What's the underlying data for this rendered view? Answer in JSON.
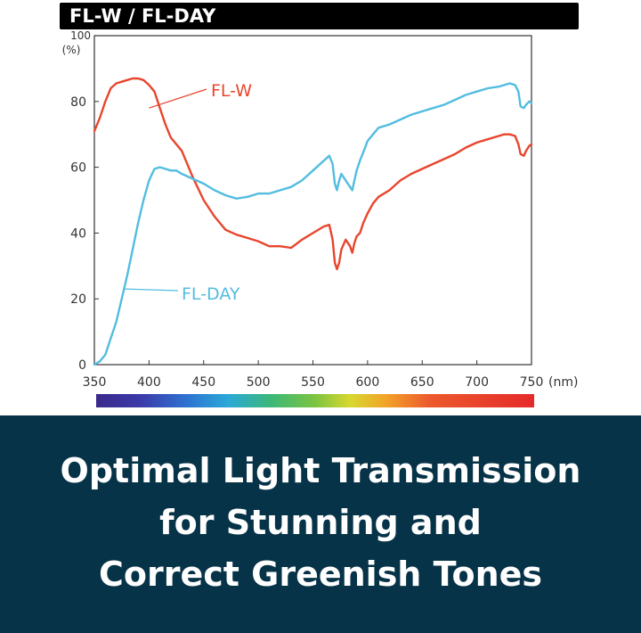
{
  "header": {
    "title": "FL-W / FL-DAY"
  },
  "chart_data": {
    "type": "line",
    "title": "FL-W / FL-DAY",
    "ylabel": "(%)",
    "xunit": "(nm)",
    "xlim": [
      350,
      750
    ],
    "ylim": [
      0,
      100
    ],
    "xticks": [
      350,
      400,
      450,
      500,
      550,
      600,
      650,
      700,
      750
    ],
    "yticks": [
      0,
      20,
      40,
      60,
      80,
      100
    ],
    "grid": false,
    "has_spectrum_bar": true,
    "series": [
      {
        "name": "FL-W",
        "color": "#e8452d",
        "x": [
          350,
          355,
          360,
          365,
          370,
          375,
          380,
          385,
          390,
          395,
          400,
          405,
          410,
          415,
          420,
          430,
          440,
          450,
          460,
          470,
          480,
          490,
          500,
          510,
          520,
          530,
          540,
          550,
          560,
          565,
          568,
          570,
          572,
          574,
          576,
          580,
          584,
          586,
          588,
          590,
          593,
          596,
          600,
          605,
          610,
          620,
          630,
          640,
          650,
          660,
          670,
          680,
          690,
          700,
          710,
          720,
          725,
          730,
          735,
          738,
          740,
          743,
          745,
          748,
          750
        ],
        "y": [
          71,
          75,
          80,
          84,
          85.5,
          86,
          86.5,
          87,
          87,
          86.5,
          85,
          83,
          78,
          73,
          69,
          65,
          57,
          50,
          45,
          41,
          39.5,
          38.5,
          37.5,
          36,
          36,
          35.5,
          38,
          40,
          42,
          42.5,
          38,
          31,
          29,
          31,
          35,
          38,
          36,
          34,
          37,
          39,
          40,
          43,
          46,
          49,
          51,
          53,
          56,
          58,
          59.5,
          61,
          62.5,
          64,
          66,
          67.5,
          68.5,
          69.5,
          70,
          70,
          69.5,
          67,
          64,
          63.5,
          65,
          66.5,
          67
        ]
      },
      {
        "name": "FL-DAY",
        "color": "#52bde0",
        "x": [
          350,
          355,
          360,
          365,
          370,
          375,
          380,
          385,
          390,
          395,
          400,
          405,
          410,
          415,
          420,
          425,
          430,
          440,
          450,
          460,
          470,
          480,
          490,
          500,
          510,
          520,
          530,
          540,
          550,
          560,
          565,
          568,
          570,
          572,
          574,
          576,
          580,
          584,
          586,
          588,
          590,
          593,
          596,
          600,
          605,
          610,
          620,
          630,
          640,
          650,
          660,
          670,
          680,
          690,
          700,
          710,
          720,
          725,
          730,
          735,
          738,
          740,
          743,
          745,
          748,
          750
        ],
        "y": [
          0,
          1,
          3,
          8,
          13,
          20,
          27,
          35,
          43,
          50,
          56,
          59.5,
          60,
          59.5,
          59,
          59,
          58,
          56.5,
          55,
          53,
          51.5,
          50.5,
          51,
          52,
          52,
          53,
          54,
          56,
          59,
          62,
          63.5,
          61,
          55,
          53,
          56,
          58,
          56,
          54,
          53,
          56,
          59,
          62,
          64.5,
          68,
          70,
          72,
          73,
          74.5,
          76,
          77,
          78,
          79,
          80.5,
          82,
          83,
          84,
          84.5,
          85,
          85.5,
          85,
          83,
          78.5,
          78,
          79,
          80,
          79.5
        ]
      }
    ]
  },
  "banner": {
    "lines": [
      "Optimal Light Transmission",
      "for Stunning and",
      "Correct Greenish Tones"
    ]
  }
}
